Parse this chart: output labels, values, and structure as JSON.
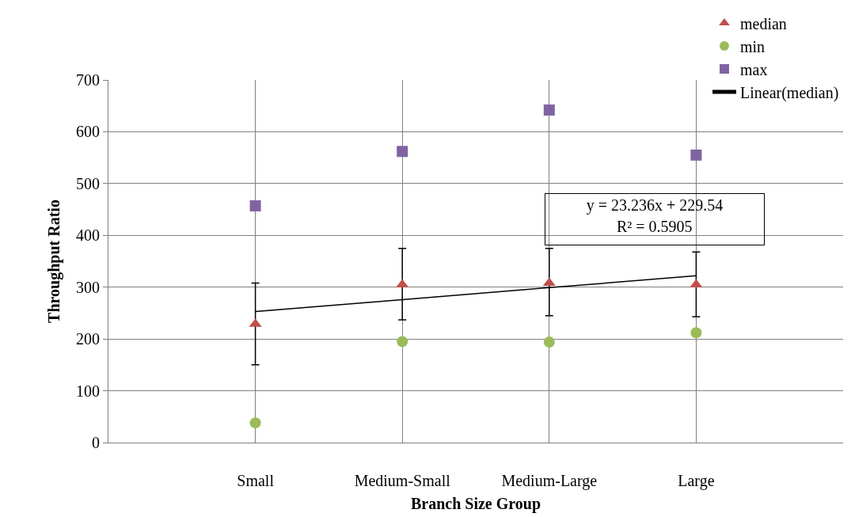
{
  "chart_data": {
    "type": "scatter",
    "xlabel": "Branch Size Group",
    "ylabel": "Throughput Ratio",
    "categories": [
      "Small",
      "Medium-Small",
      "Medium-Large",
      "Large"
    ],
    "series": [
      {
        "name": "median",
        "color": "#c0504d",
        "marker": "triangle",
        "values": [
          229,
          305,
          308,
          305
        ],
        "errors": [
          [
            150,
            308
          ],
          [
            237,
            375
          ],
          [
            245,
            375
          ],
          [
            243,
            368
          ]
        ]
      },
      {
        "name": "min",
        "color": "#9bbb59",
        "marker": "circle",
        "values": [
          38,
          195,
          194,
          212
        ]
      },
      {
        "name": "max",
        "color": "#8064a2",
        "marker": "square",
        "values": [
          457,
          562,
          642,
          555
        ]
      },
      {
        "name": "Linear(median)",
        "type": "line",
        "color": "#000000",
        "marker": "none",
        "values": [
          253,
          276,
          299,
          322
        ]
      }
    ],
    "annotations": [
      "y = 23.236x + 229.54",
      "R² = 0.5905"
    ],
    "ylim": [
      0,
      700
    ],
    "yticks": [
      0,
      100,
      200,
      300,
      400,
      500,
      600,
      700
    ],
    "grid": true,
    "legend": "top right"
  }
}
